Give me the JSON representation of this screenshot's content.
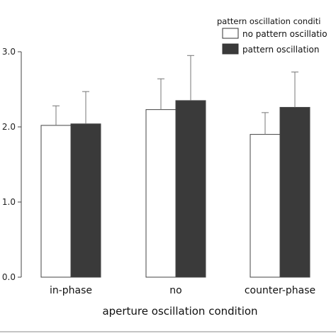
{
  "chart_data": {
    "type": "bar",
    "categories": [
      "in-phase",
      "no",
      "counter-phase"
    ],
    "series": [
      {
        "name": "no pattern oscillation",
        "values": [
          2.02,
          2.23,
          1.9
        ],
        "errors": [
          0.26,
          0.41,
          0.29
        ],
        "color": "#ffffff"
      },
      {
        "name": "pattern oscillation",
        "values": [
          2.04,
          2.35,
          2.26
        ],
        "errors": [
          0.43,
          0.6,
          0.47
        ],
        "color": "#3a3a3a"
      }
    ],
    "xlabel": "aperture oscillation condition",
    "ylabel": "",
    "ylim": [
      0,
      3
    ],
    "yticks": [
      "0.0",
      "1.0",
      "2.0",
      "3.0"
    ],
    "legend": {
      "title": "pattern oscillation conditi",
      "labels": [
        "no pattern oscillatio",
        "pattern oscillation"
      ],
      "position": "top-right"
    },
    "grid": false
  }
}
